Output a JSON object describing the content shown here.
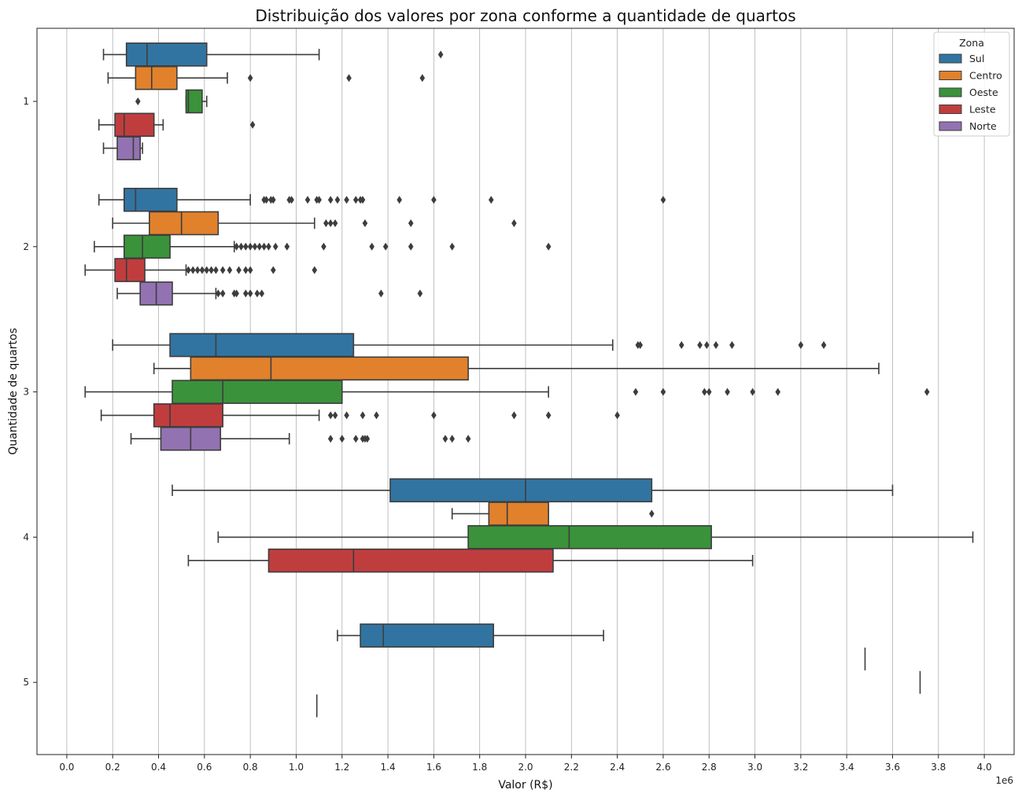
{
  "chart_data": {
    "type": "boxplot",
    "orientation": "horizontal",
    "title": "Distribuição dos valores por zona conforme a quantidade de quartos",
    "xlabel": "Valor (R$)",
    "ylabel": "Quantidade de quartos",
    "x_scale_label": "1e6",
    "xlim": [
      -0.13,
      4.13
    ],
    "x_ticks": [
      0.0,
      0.2,
      0.4,
      0.6,
      0.8,
      1.0,
      1.2,
      1.4,
      1.6,
      1.8,
      2.0,
      2.2,
      2.4,
      2.6,
      2.8,
      3.0,
      3.2,
      3.4,
      3.6,
      3.8,
      4.0
    ],
    "x_tick_labels": [
      "0.0",
      "0.2",
      "0.4",
      "0.6",
      "0.8",
      "1.0",
      "1.2",
      "1.4",
      "1.6",
      "1.8",
      "2.0",
      "2.2",
      "2.4",
      "2.6",
      "2.8",
      "3.0",
      "3.2",
      "3.4",
      "3.6",
      "3.8",
      "4.0"
    ],
    "categories": [
      "1",
      "2",
      "3",
      "4",
      "5"
    ],
    "grid": "vertical",
    "legend": {
      "title": "Zona",
      "position": "top-right"
    },
    "series": [
      {
        "name": "Sul",
        "color": "#3274a1",
        "boxes": [
          {
            "category": "1",
            "whislo": 0.16,
            "q1": 0.26,
            "med": 0.35,
            "q3": 0.61,
            "whishi": 1.1,
            "fliers": [
              1.63
            ]
          },
          {
            "category": "2",
            "whislo": 0.14,
            "q1": 0.25,
            "med": 0.3,
            "q3": 0.48,
            "whishi": 0.8,
            "fliers": [
              0.86,
              0.87,
              0.89,
              0.9,
              0.97,
              0.98,
              1.05,
              1.09,
              1.1,
              1.15,
              1.18,
              1.22,
              1.26,
              1.28,
              1.29,
              1.45,
              1.6,
              1.85,
              2.6
            ]
          },
          {
            "category": "3",
            "whislo": 0.2,
            "q1": 0.45,
            "med": 0.65,
            "q3": 1.25,
            "whishi": 2.38,
            "fliers": [
              2.49,
              2.5,
              2.68,
              2.76,
              2.79,
              2.83,
              2.9,
              3.2,
              3.3
            ]
          },
          {
            "category": "4",
            "whislo": 0.46,
            "q1": 1.41,
            "med": 2.0,
            "q3": 2.55,
            "whishi": 3.6,
            "fliers": []
          },
          {
            "category": "5",
            "whislo": 1.18,
            "q1": 1.28,
            "med": 1.38,
            "q3": 1.86,
            "whishi": 2.34,
            "fliers": []
          }
        ]
      },
      {
        "name": "Centro",
        "color": "#e1812c",
        "boxes": [
          {
            "category": "1",
            "whislo": 0.18,
            "q1": 0.3,
            "med": 0.37,
            "q3": 0.48,
            "whishi": 0.7,
            "fliers": [
              0.8,
              1.23,
              1.55
            ]
          },
          {
            "category": "2",
            "whislo": 0.2,
            "q1": 0.36,
            "med": 0.5,
            "q3": 0.66,
            "whishi": 1.08,
            "fliers": [
              1.13,
              1.15,
              1.17,
              1.3,
              1.5,
              1.95
            ]
          },
          {
            "category": "3",
            "whislo": 0.38,
            "q1": 0.54,
            "med": 0.89,
            "q3": 1.75,
            "whishi": 3.54,
            "fliers": []
          },
          {
            "category": "4",
            "whislo": 1.68,
            "q1": 1.84,
            "med": 1.92,
            "q3": 2.1,
            "whishi": 2.1,
            "fliers": [
              2.55
            ]
          },
          {
            "category": "5",
            "whislo": 3.48,
            "q1": 3.48,
            "med": 3.48,
            "q3": 3.48,
            "whishi": 3.48,
            "fliers": []
          }
        ]
      },
      {
        "name": "Oeste",
        "color": "#3a923a",
        "boxes": [
          {
            "category": "1",
            "whislo": 0.52,
            "q1": 0.52,
            "med": 0.53,
            "q3": 0.59,
            "whishi": 0.61,
            "fliers": [
              0.31
            ]
          },
          {
            "category": "2",
            "whislo": 0.12,
            "q1": 0.25,
            "med": 0.33,
            "q3": 0.45,
            "whishi": 0.73,
            "fliers": [
              0.74,
              0.76,
              0.78,
              0.8,
              0.82,
              0.84,
              0.86,
              0.88,
              0.91,
              0.96,
              1.12,
              1.33,
              1.39,
              1.5,
              1.68,
              2.1
            ]
          },
          {
            "category": "3",
            "whislo": 0.08,
            "q1": 0.46,
            "med": 0.68,
            "q3": 1.2,
            "whishi": 2.1,
            "fliers": [
              2.48,
              2.6,
              2.78,
              2.8,
              2.88,
              2.99,
              3.1,
              3.75
            ]
          },
          {
            "category": "4",
            "whislo": 0.66,
            "q1": 1.75,
            "med": 2.19,
            "q3": 2.81,
            "whishi": 3.95,
            "fliers": []
          },
          {
            "category": "5",
            "whislo": 3.72,
            "q1": 3.72,
            "med": 3.72,
            "q3": 3.72,
            "whishi": 3.72,
            "fliers": []
          }
        ]
      },
      {
        "name": "Leste",
        "color": "#c03d3e",
        "boxes": [
          {
            "category": "1",
            "whislo": 0.14,
            "q1": 0.21,
            "med": 0.25,
            "q3": 0.38,
            "whishi": 0.42,
            "fliers": [
              0.81
            ]
          },
          {
            "category": "2",
            "whislo": 0.08,
            "q1": 0.21,
            "med": 0.26,
            "q3": 0.34,
            "whishi": 0.52,
            "fliers": [
              0.53,
              0.55,
              0.57,
              0.59,
              0.61,
              0.63,
              0.65,
              0.68,
              0.71,
              0.75,
              0.78,
              0.8,
              0.9,
              1.08
            ]
          },
          {
            "category": "3",
            "whislo": 0.15,
            "q1": 0.38,
            "med": 0.45,
            "q3": 0.68,
            "whishi": 1.1,
            "fliers": [
              1.15,
              1.17,
              1.22,
              1.29,
              1.35,
              1.6,
              1.95,
              2.1,
              2.4
            ]
          },
          {
            "category": "4",
            "whislo": 0.53,
            "q1": 0.88,
            "med": 1.25,
            "q3": 2.12,
            "whishi": 2.99,
            "fliers": []
          },
          {
            "category": "5",
            "whislo": 1.09,
            "q1": 1.09,
            "med": 1.09,
            "q3": 1.09,
            "whishi": 1.09,
            "fliers": []
          }
        ]
      },
      {
        "name": "Norte",
        "color": "#9372b2",
        "boxes": [
          {
            "category": "1",
            "whislo": 0.16,
            "q1": 0.22,
            "med": 0.29,
            "q3": 0.32,
            "whishi": 0.33,
            "fliers": []
          },
          {
            "category": "2",
            "whislo": 0.22,
            "q1": 0.32,
            "med": 0.39,
            "q3": 0.46,
            "whishi": 0.65,
            "fliers": [
              0.66,
              0.68,
              0.73,
              0.74,
              0.78,
              0.8,
              0.83,
              0.85,
              1.37,
              1.54
            ]
          },
          {
            "category": "3",
            "whislo": 0.28,
            "q1": 0.41,
            "med": 0.54,
            "q3": 0.67,
            "whishi": 0.97,
            "fliers": [
              1.15,
              1.2,
              1.26,
              1.29,
              1.3,
              1.31,
              1.65,
              1.68,
              1.75
            ]
          }
        ]
      }
    ]
  }
}
